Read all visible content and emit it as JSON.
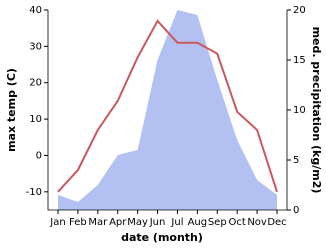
{
  "chart_data": {
    "type": "line_area",
    "categories": [
      "Jan",
      "Feb",
      "Mar",
      "Apr",
      "May",
      "Jun",
      "Jul",
      "Aug",
      "Sep",
      "Oct",
      "Nov",
      "Dec"
    ],
    "series": [
      {
        "name": "med. precipitation",
        "color": "#b3c0f2",
        "axis": "y2",
        "values": [
          1.5,
          0.8,
          2.5,
          5.5,
          6,
          15,
          20,
          19.5,
          13,
          7,
          3,
          1.5
        ]
      },
      {
        "name": "max temp",
        "color": "#c9585b",
        "values": [
          -10,
          -4,
          7,
          15,
          27,
          37,
          31,
          31,
          28,
          12,
          7,
          -10
        ]
      }
    ],
    "xlabel": "date (month)",
    "ylabel": "max temp (C)",
    "y2label": "med. precipitation (kg/m2)",
    "ylim": [
      -15,
      40
    ],
    "yticks": [
      -10,
      0,
      10,
      20,
      30,
      40
    ],
    "y2lim": [
      0,
      20
    ],
    "y2ticks": [
      0,
      5,
      10,
      15,
      20
    ]
  }
}
